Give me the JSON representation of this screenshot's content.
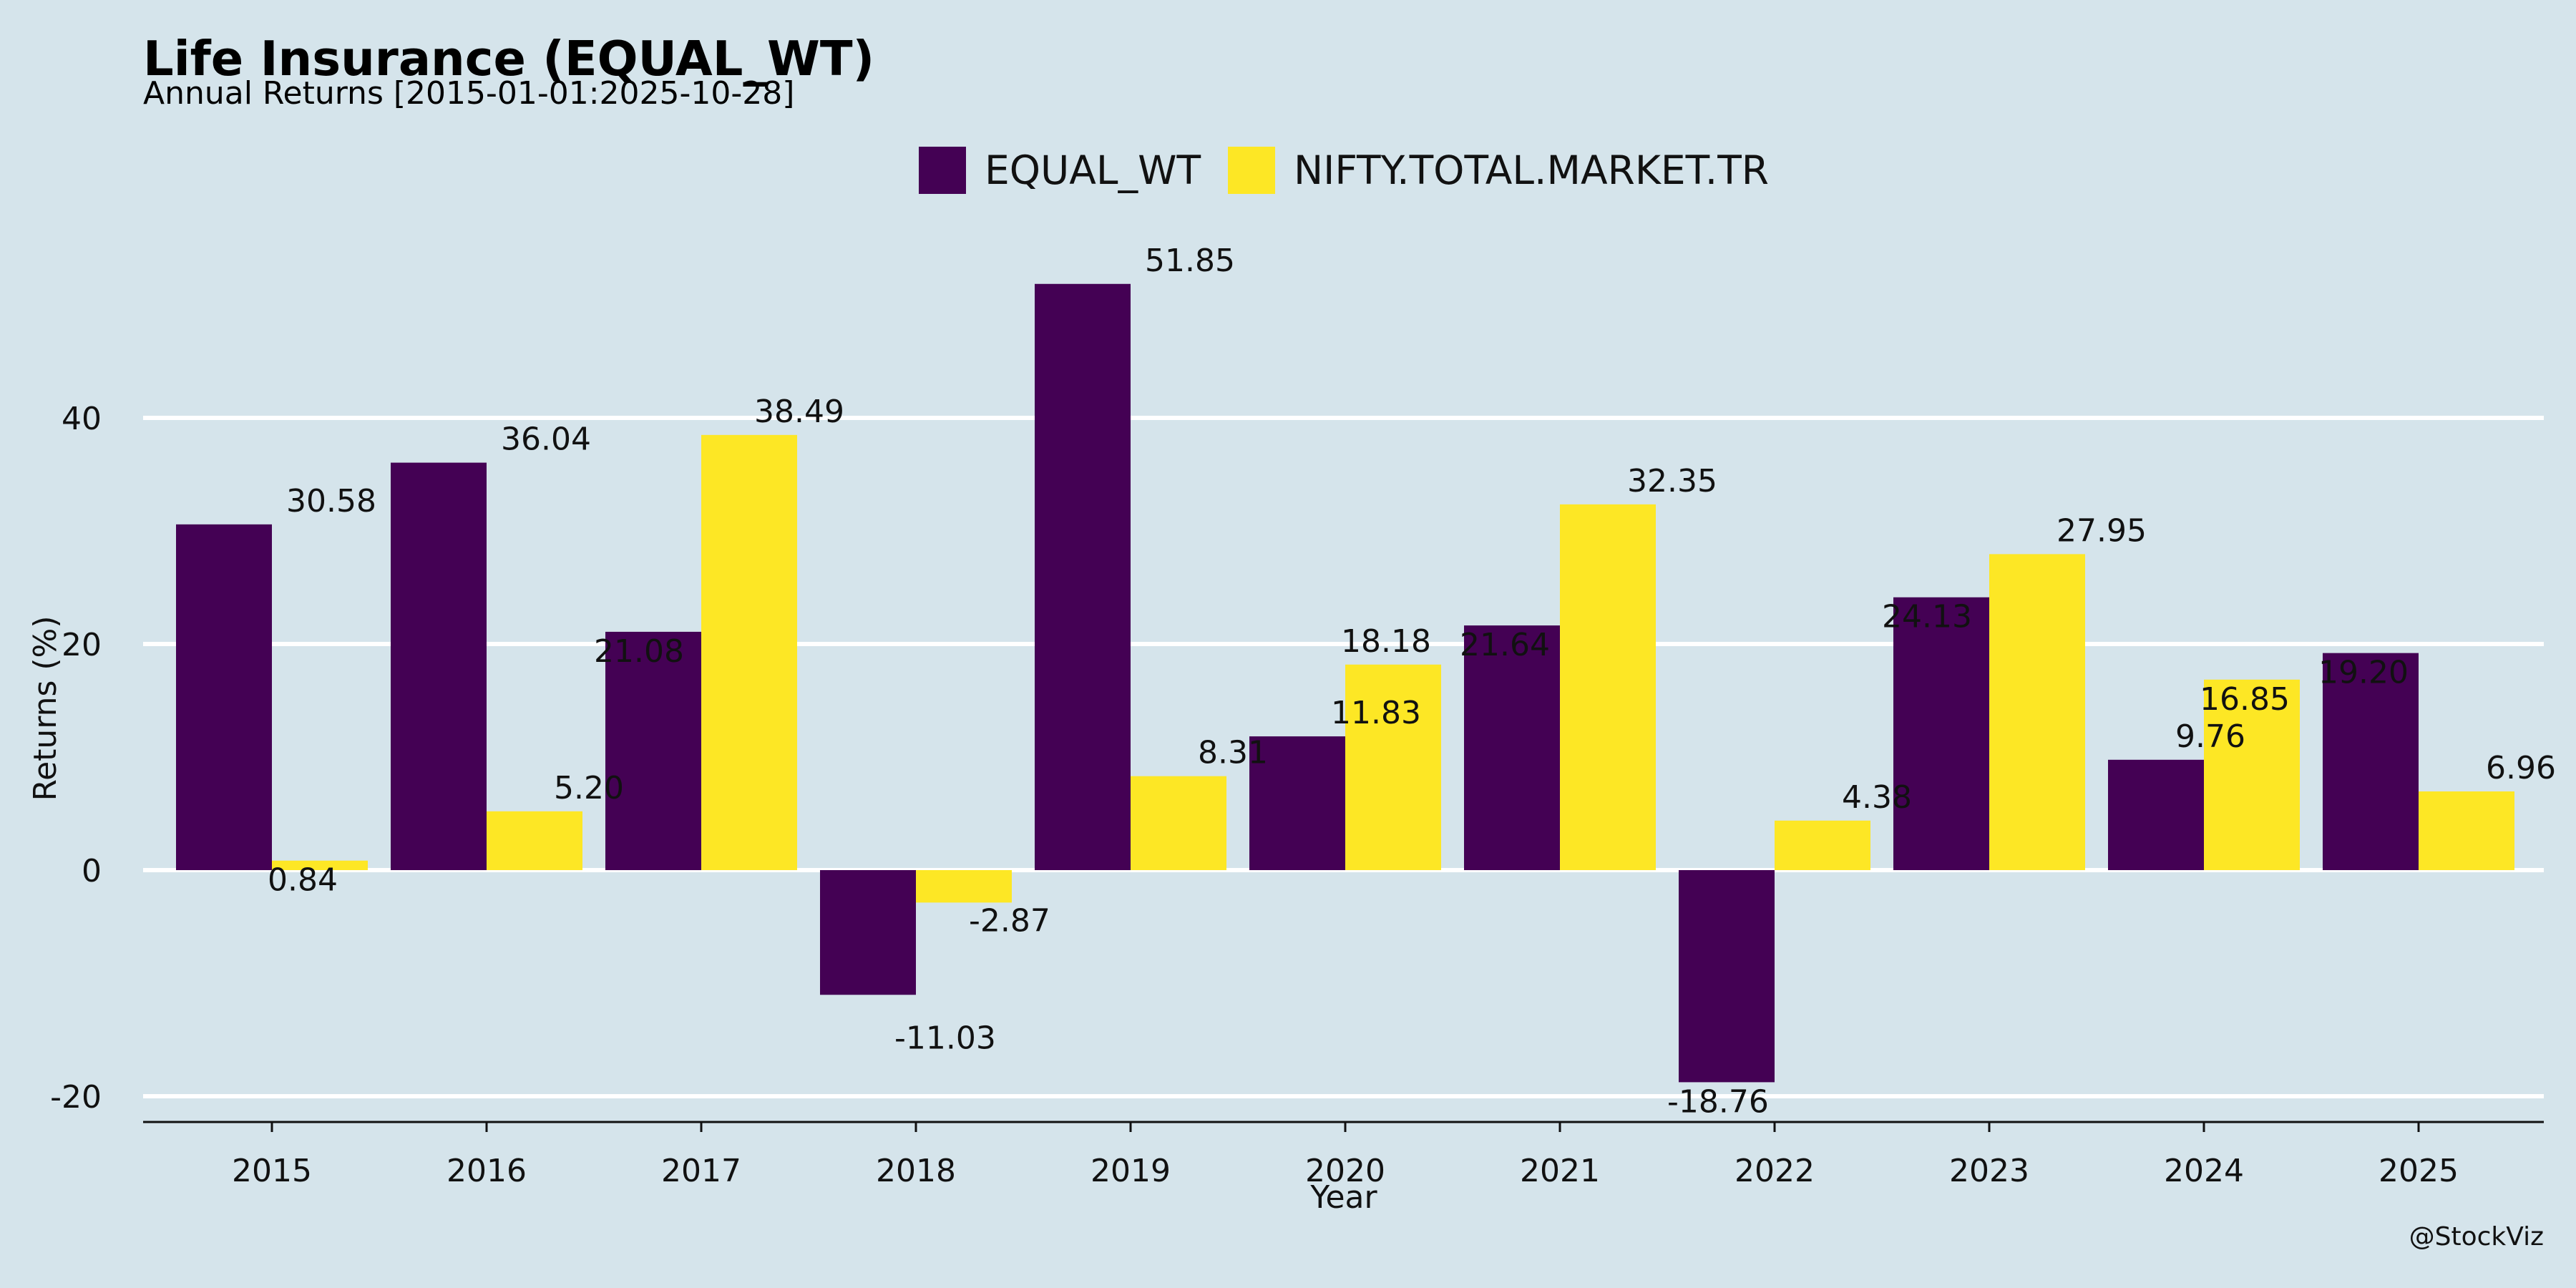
{
  "chart_data": {
    "type": "bar",
    "title": "Life Insurance (EQUAL_WT)",
    "subtitle": "Annual Returns [2015-01-01:2025-10-28]",
    "xlabel": "Year",
    "ylabel": "Returns (%)",
    "categories": [
      "2015",
      "2016",
      "2017",
      "2018",
      "2019",
      "2020",
      "2021",
      "2022",
      "2023",
      "2024",
      "2025"
    ],
    "series": [
      {
        "name": "EQUAL_WT",
        "color": "#440154",
        "values": [
          30.58,
          36.04,
          21.08,
          -11.03,
          51.85,
          11.83,
          21.64,
          -18.76,
          24.13,
          9.76,
          19.2
        ],
        "labels": [
          "30.58",
          "36.04",
          "21.08",
          "-11.03",
          "51.85",
          "11.83",
          "21.64",
          "-18.76",
          "24.13",
          "9.76",
          "19.20"
        ]
      },
      {
        "name": "NIFTY.TOTAL.MARKET.TR",
        "color": "#fde725",
        "values": [
          0.84,
          5.2,
          38.49,
          -2.87,
          8.31,
          18.18,
          32.35,
          4.38,
          27.95,
          16.85,
          6.96
        ],
        "labels": [
          "0.84",
          "5.20",
          "38.49",
          "-2.87",
          "8.31",
          "18.18",
          "32.35",
          "4.38",
          "27.95",
          "16.85",
          "6.96"
        ]
      }
    ],
    "yticks": [
      -20,
      0,
      20,
      40
    ],
    "ytick_labels": [
      "-20",
      "0",
      "20",
      "40"
    ],
    "ylim": [
      -22.5,
      57
    ],
    "grid": "horizontal",
    "legend": "top-center",
    "caption": "@StockViz"
  }
}
